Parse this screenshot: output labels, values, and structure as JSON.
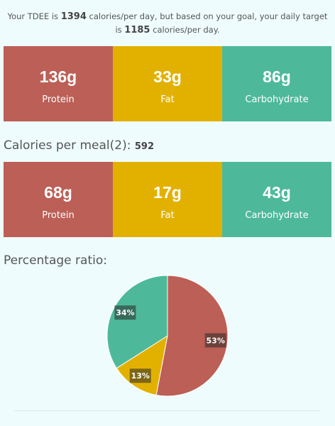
{
  "intro": {
    "prefix": "Your TDEE is",
    "tdee": 1394,
    "middle": "calories/per day, but based on your goal, your daily target is",
    "target": 1185,
    "suffix": "calories/per day."
  },
  "daily": [
    {
      "amount": "136g",
      "label": "Protein"
    },
    {
      "amount": "33g",
      "label": "Fat"
    },
    {
      "amount": "86g",
      "label": "Carbohydrate"
    }
  ],
  "per_meal": {
    "label": "Calories per meal(2):",
    "calories": 592,
    "macros": [
      {
        "amount": "68g",
        "label": "Protein"
      },
      {
        "amount": "17g",
        "label": "Fat"
      },
      {
        "amount": "43g",
        "label": "Carbohydrate"
      }
    ]
  },
  "ratio_heading": "Percentage ratio:",
  "chart_data": {
    "type": "pie",
    "values": [
      53,
      13,
      34
    ],
    "value_labels": [
      "53%",
      "13%",
      "34%"
    ],
    "colors": [
      "#bc5f56",
      "#e2b100",
      "#4db99a"
    ]
  }
}
